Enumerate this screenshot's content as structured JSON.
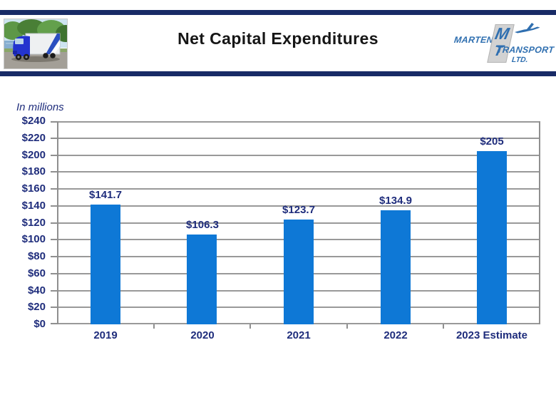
{
  "header": {
    "title": "Net Capital Expenditures",
    "logo": {
      "name_top": "MARTEN",
      "monogram_m": "M",
      "monogram_t": "T",
      "name_mid": "TRANSPORT",
      "name_bottom": "LTD.",
      "blue": "#2f6fb0"
    },
    "rule_color": "#182b66"
  },
  "chart_data": {
    "type": "bar",
    "title": "Net Capital Expenditures",
    "units_note": "In millions",
    "categories": [
      "2019",
      "2020",
      "2021",
      "2022",
      "2023 Estimate"
    ],
    "values": [
      141.7,
      106.3,
      123.7,
      134.9,
      205
    ],
    "value_labels": [
      "$141.7",
      "$106.3",
      "$123.7",
      "$134.9",
      "$205"
    ],
    "y_ticks": [
      "$0",
      "$20",
      "$40",
      "$60",
      "$80",
      "$100",
      "$120",
      "$140",
      "$160",
      "$180",
      "$200",
      "$220",
      "$240"
    ],
    "ylim": [
      0,
      240
    ],
    "grid": true,
    "legend": "none",
    "bar_color": "#0e78d6",
    "label_color": "#1f2d7c",
    "gridline_color": "#999999"
  }
}
